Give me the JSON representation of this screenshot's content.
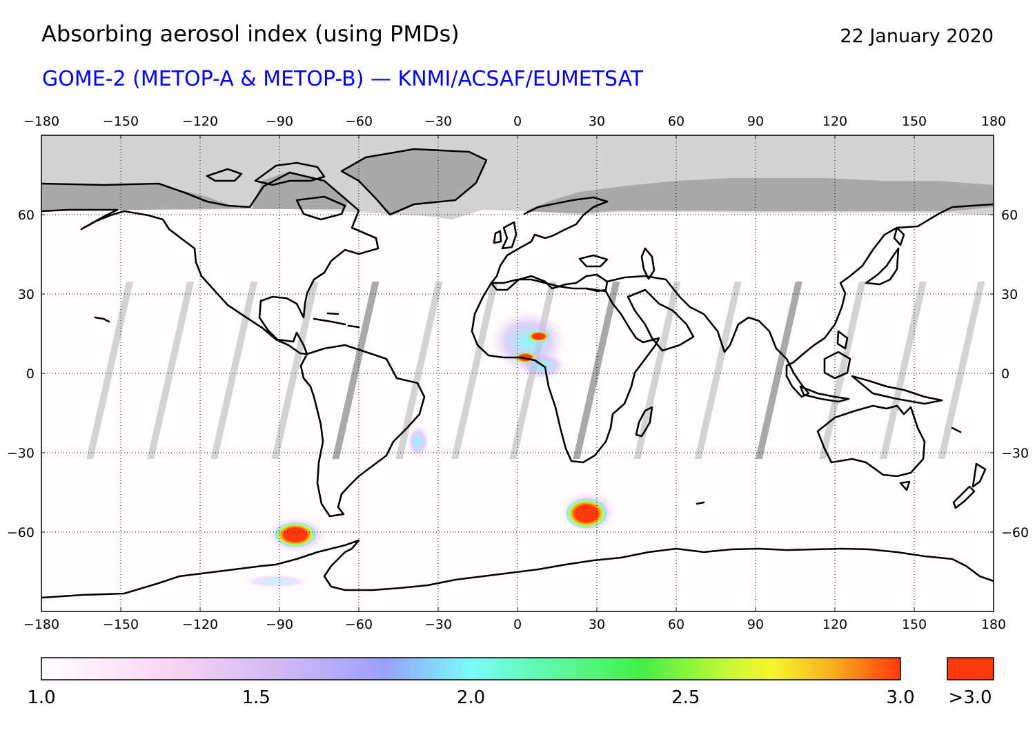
{
  "header": {
    "title": "Absorbing aerosol index (using PMDs)",
    "date": "22 January 2020",
    "subtitle": "GOME-2 (METOP-A & METOP-B) — KNMI/ACSAF/EUMETSAT"
  },
  "colors": {
    "subtitle": "#0000ff",
    "polar_night_light": "#d3d3d3",
    "land_polar_night": "#a9a9a9",
    "swath_gap": "#d3d3d3",
    "swath_gap_dark": "#a9a9a9",
    "above_max": "#ff3a0a"
  },
  "map": {
    "projection": "equirectangular",
    "lon_range": [
      -180,
      180
    ],
    "lat_range": [
      -90,
      90
    ],
    "grid": true,
    "lon_ticks": [
      {
        "value": -180,
        "label": "−180"
      },
      {
        "value": -150,
        "label": "−150"
      },
      {
        "value": -120,
        "label": "−120"
      },
      {
        "value": -90,
        "label": "−90"
      },
      {
        "value": -60,
        "label": "−60"
      },
      {
        "value": -30,
        "label": "−30"
      },
      {
        "value": 0,
        "label": "0"
      },
      {
        "value": 30,
        "label": "30"
      },
      {
        "value": 60,
        "label": "60"
      },
      {
        "value": 90,
        "label": "90"
      },
      {
        "value": 120,
        "label": "120"
      },
      {
        "value": 150,
        "label": "150"
      },
      {
        "value": 180,
        "label": "180"
      }
    ],
    "lat_ticks": [
      {
        "value": 60,
        "label": "60"
      },
      {
        "value": 30,
        "label": "30"
      },
      {
        "value": 0,
        "label": "0"
      },
      {
        "value": -30,
        "label": "−30"
      },
      {
        "value": -60,
        "label": "−60"
      }
    ],
    "high_aerosol_regions": [
      {
        "name": "south-pacific-plume",
        "lon": -84,
        "lat": -61
      },
      {
        "name": "south-atlantic-plume",
        "lon": 26,
        "lat": -53
      },
      {
        "name": "west-africa-plume",
        "lon": 3,
        "lat": 6
      },
      {
        "name": "chad-plume",
        "lon": 8,
        "lat": 14
      }
    ]
  },
  "colorbar": {
    "stops": [
      {
        "offset": 0.0,
        "color": "#ffffff"
      },
      {
        "offset": 0.15,
        "color": "#fad4f2"
      },
      {
        "offset": 0.3,
        "color": "#c8b4f6"
      },
      {
        "offset": 0.4,
        "color": "#9aa0ff"
      },
      {
        "offset": 0.5,
        "color": "#78fcf8"
      },
      {
        "offset": 0.6,
        "color": "#5ef7a0"
      },
      {
        "offset": 0.7,
        "color": "#44f044"
      },
      {
        "offset": 0.8,
        "color": "#c8f83a"
      },
      {
        "offset": 0.85,
        "color": "#f6f62c"
      },
      {
        "offset": 0.92,
        "color": "#f8b020"
      },
      {
        "offset": 1.0,
        "color": "#ff3a0a"
      }
    ],
    "tick_labels": [
      {
        "value": 1.0,
        "label": "1.0"
      },
      {
        "value": 1.5,
        "label": "1.5"
      },
      {
        "value": 2.0,
        "label": "2.0"
      },
      {
        "value": 2.5,
        "label": "2.5"
      },
      {
        "value": 3.0,
        "label": "3.0"
      }
    ],
    "range": [
      1.0,
      3.0
    ],
    "over_label": ">3.0"
  }
}
